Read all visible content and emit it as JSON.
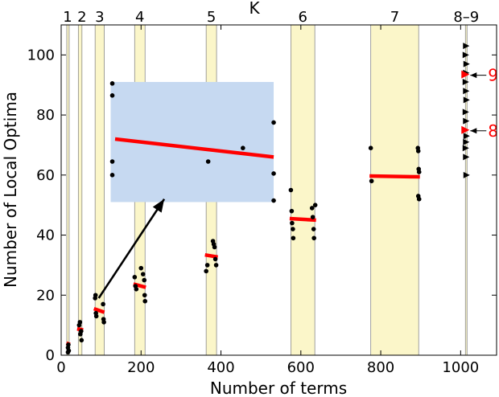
{
  "chart_data": {
    "type": "scatter",
    "title": "",
    "xlabel": "Number of terms",
    "ylabel": "Number of Local Optima",
    "top_axis_label": "K",
    "xlim": [
      0,
      1090
    ],
    "ylim": [
      0,
      110
    ],
    "x_ticks": [
      0,
      200,
      400,
      600,
      800,
      1000
    ],
    "x_tick_labels": [
      "0",
      "200",
      "400",
      "600",
      "800",
      "1000"
    ],
    "y_ticks": [
      0,
      20,
      40,
      60,
      80,
      100
    ],
    "y_tick_labels": [
      "0",
      "20",
      "40",
      "60",
      "80",
      "100"
    ],
    "grid": false,
    "colors": {
      "band_fill": "#fbf6c9",
      "band_edge": "#8a8a8a",
      "points": "#000000",
      "fit_line": "#ff0000",
      "inset_fill": "#c6d9f1",
      "annotation": "#ff0000"
    },
    "bands": [
      {
        "label": "1",
        "x0": 14,
        "x1": 20
      },
      {
        "label": "2",
        "x0": 43,
        "x1": 52
      },
      {
        "label": "3",
        "x0": 85,
        "x1": 108
      },
      {
        "label": "4",
        "x0": 184,
        "x1": 210
      },
      {
        "label": "5",
        "x0": 363,
        "x1": 389
      },
      {
        "label": "6",
        "x0": 575,
        "x1": 635
      },
      {
        "label": "7",
        "x0": 775,
        "x1": 895
      },
      {
        "label": "8–9",
        "x0": 1012,
        "x1": 1016
      }
    ],
    "points": [
      {
        "x": 17,
        "y": 1
      },
      {
        "x": 17,
        "y": 2.5
      },
      {
        "x": 18,
        "y": 3.5
      },
      {
        "x": 19,
        "y": 1.5
      },
      {
        "x": 45,
        "y": 10
      },
      {
        "x": 47,
        "y": 11
      },
      {
        "x": 50,
        "y": 8
      },
      {
        "x": 48,
        "y": 7
      },
      {
        "x": 51,
        "y": 5
      },
      {
        "x": 85,
        "y": 19
      },
      {
        "x": 86,
        "y": 20
      },
      {
        "x": 87,
        "y": 14
      },
      {
        "x": 88,
        "y": 13
      },
      {
        "x": 105,
        "y": 17
      },
      {
        "x": 106,
        "y": 12
      },
      {
        "x": 107,
        "y": 11
      },
      {
        "x": 184,
        "y": 26
      },
      {
        "x": 186,
        "y": 23
      },
      {
        "x": 188,
        "y": 22
      },
      {
        "x": 200,
        "y": 29
      },
      {
        "x": 205,
        "y": 27
      },
      {
        "x": 208,
        "y": 25
      },
      {
        "x": 209,
        "y": 20
      },
      {
        "x": 210,
        "y": 18
      },
      {
        "x": 363,
        "y": 28
      },
      {
        "x": 366,
        "y": 30
      },
      {
        "x": 380,
        "y": 38
      },
      {
        "x": 382,
        "y": 37
      },
      {
        "x": 384,
        "y": 36
      },
      {
        "x": 386,
        "y": 32
      },
      {
        "x": 388,
        "y": 30
      },
      {
        "x": 575,
        "y": 55
      },
      {
        "x": 577,
        "y": 48
      },
      {
        "x": 578,
        "y": 44
      },
      {
        "x": 580,
        "y": 42
      },
      {
        "x": 581,
        "y": 39
      },
      {
        "x": 628,
        "y": 49
      },
      {
        "x": 630,
        "y": 46
      },
      {
        "x": 632,
        "y": 42
      },
      {
        "x": 633,
        "y": 39
      },
      {
        "x": 636,
        "y": 50
      },
      {
        "x": 775,
        "y": 69
      },
      {
        "x": 777,
        "y": 58
      },
      {
        "x": 893,
        "y": 69
      },
      {
        "x": 894,
        "y": 68
      },
      {
        "x": 895,
        "y": 62
      },
      {
        "x": 896,
        "y": 61
      },
      {
        "x": 894,
        "y": 53
      },
      {
        "x": 896,
        "y": 52
      }
    ],
    "triangles": [
      {
        "x": 1014,
        "y": 103
      },
      {
        "x": 1013,
        "y": 100
      },
      {
        "x": 1015,
        "y": 97
      },
      {
        "x": 1014,
        "y": 94
      },
      {
        "x": 1013,
        "y": 91
      },
      {
        "x": 1014,
        "y": 88
      },
      {
        "x": 1015,
        "y": 85
      },
      {
        "x": 1013,
        "y": 81
      },
      {
        "x": 1014,
        "y": 78
      },
      {
        "x": 1013,
        "y": 75
      },
      {
        "x": 1015,
        "y": 73
      },
      {
        "x": 1014,
        "y": 71
      },
      {
        "x": 1013,
        "y": 69
      },
      {
        "x": 1014,
        "y": 66
      },
      {
        "x": 1015,
        "y": 60
      }
    ],
    "fit_segments": [
      {
        "x": [
          13,
          22
        ],
        "y": [
          4,
          3.6
        ]
      },
      {
        "x": [
          40,
          55
        ],
        "y": [
          8.8,
          8.4
        ]
      },
      {
        "x": [
          82,
          108
        ],
        "y": [
          15.5,
          14.3
        ]
      },
      {
        "x": [
          181,
          212
        ],
        "y": [
          23.7,
          22.6
        ]
      },
      {
        "x": [
          360,
          392
        ],
        "y": [
          33.4,
          32.7
        ]
      },
      {
        "x": [
          572,
          638
        ],
        "y": [
          45.5,
          45.0
        ]
      },
      {
        "x": [
          772,
          898
        ],
        "y": [
          59.7,
          59.4
        ]
      }
    ],
    "highlight_points": [
      {
        "x": 1012,
        "y": 93.5,
        "label": "9"
      },
      {
        "x": 1012,
        "y": 75,
        "label": "8"
      }
    ],
    "inset": {
      "x_range": [
        124,
        532
      ],
      "y_range": [
        51,
        91
      ],
      "points": [
        {
          "x": 128,
          "y": 90.5
        },
        {
          "x": 128,
          "y": 86.5
        },
        {
          "x": 128,
          "y": 64.5
        },
        {
          "x": 128,
          "y": 60
        },
        {
          "x": 368,
          "y": 64.5
        },
        {
          "x": 455,
          "y": 69
        },
        {
          "x": 532,
          "y": 77.5
        },
        {
          "x": 532,
          "y": 60.5
        },
        {
          "x": 532,
          "y": 51.5
        }
      ],
      "fit": {
        "x": [
          135,
          532
        ],
        "y": [
          72,
          66
        ]
      },
      "arrow_from": {
        "x": 94,
        "y": 19
      },
      "arrow_to": {
        "x": 258,
        "y": 52
      }
    }
  }
}
